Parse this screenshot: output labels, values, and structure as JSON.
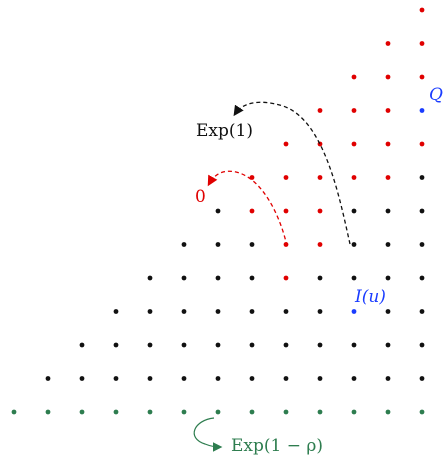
{
  "colors": {
    "black": "#111111",
    "red": "#e00000",
    "green": "#2e7d4f",
    "blue": "#1a3cff",
    "arrow_black": "#111111",
    "arrow_red": "#e00000",
    "arrow_green": "#2e7d4f"
  },
  "labels": {
    "exp1": "Exp(1)",
    "zero": "0",
    "Q": "Q",
    "Iu": "I(u)",
    "exp_rho": "Exp(1 − ρ)"
  },
  "grid": {
    "cols": 13,
    "rows": 13,
    "red_cells": [
      [
        12,
        12
      ],
      [
        11,
        11
      ],
      [
        12,
        11
      ],
      [
        10,
        10
      ],
      [
        11,
        10
      ],
      [
        12,
        10
      ],
      [
        9,
        9
      ],
      [
        10,
        9
      ],
      [
        11,
        9
      ],
      [
        12,
        9
      ],
      [
        8,
        8
      ],
      [
        9,
        8
      ],
      [
        10,
        8
      ],
      [
        11,
        8
      ],
      [
        12,
        8
      ],
      [
        7,
        7
      ],
      [
        8,
        7
      ],
      [
        9,
        7
      ],
      [
        10,
        7
      ],
      [
        11,
        7
      ],
      [
        7,
        6
      ],
      [
        8,
        6
      ],
      [
        9,
        6
      ],
      [
        8,
        5
      ],
      [
        9,
        5
      ],
      [
        8,
        4
      ]
    ],
    "blue_cells": [
      [
        12,
        9
      ],
      [
        10,
        3
      ]
    ],
    "green_row": 0
  }
}
